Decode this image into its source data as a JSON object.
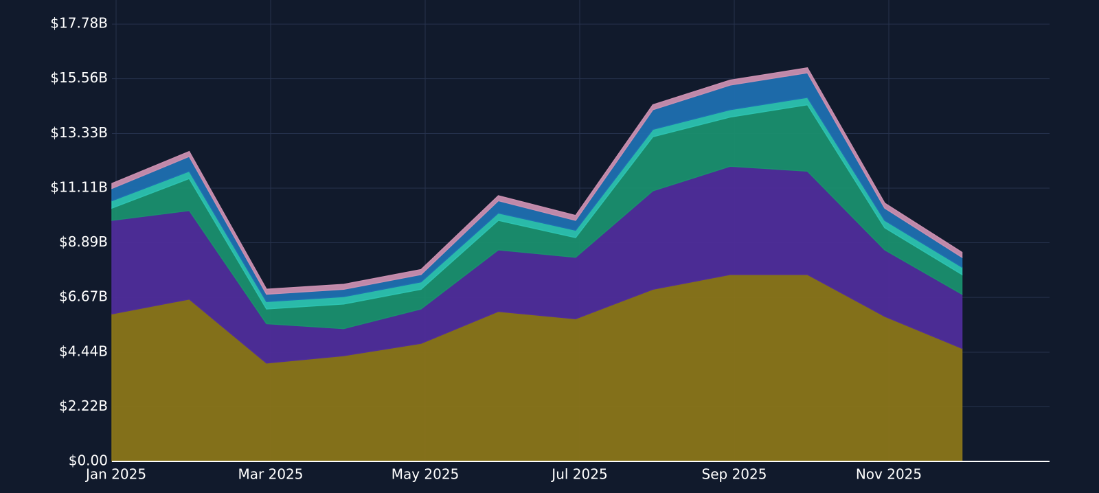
{
  "chart_data": {
    "type": "stacked_area",
    "x": [
      "Jan 2025",
      null,
      "Mar 2025",
      null,
      "May 2025",
      null,
      "Jul 2025",
      null,
      "Sep 2025",
      null,
      "Nov 2025",
      null
    ],
    "series": [
      {
        "color": "#8a7519",
        "values": [
          6.0,
          6.6,
          4.0,
          4.3,
          4.8,
          6.1,
          5.8,
          7.0,
          7.6,
          7.6,
          5.9,
          4.6
        ]
      },
      {
        "color": "#4f2d9a",
        "values": [
          3.8,
          3.6,
          1.6,
          1.1,
          1.4,
          2.5,
          2.5,
          4.0,
          4.4,
          4.2,
          2.7,
          2.2
        ]
      },
      {
        "color": "#1a8f6e",
        "values": [
          0.5,
          1.3,
          0.6,
          1.0,
          0.8,
          1.2,
          0.8,
          2.2,
          2.0,
          2.7,
          0.9,
          0.8
        ]
      },
      {
        "color": "#2cc3b0",
        "values": [
          0.3,
          0.3,
          0.3,
          0.3,
          0.3,
          0.3,
          0.3,
          0.3,
          0.3,
          0.3,
          0.3,
          0.3
        ]
      },
      {
        "color": "#1f6fb0",
        "values": [
          0.5,
          0.6,
          0.3,
          0.3,
          0.3,
          0.5,
          0.4,
          0.8,
          1.0,
          1.0,
          0.5,
          0.4
        ]
      },
      {
        "color": "#c98fb0",
        "values": [
          0.2,
          0.2,
          0.2,
          0.2,
          0.2,
          0.2,
          0.2,
          0.2,
          0.2,
          0.2,
          0.2,
          0.2
        ]
      }
    ],
    "ylim": [
      0,
      18.76
    ],
    "yticks": [
      {
        "value": 0,
        "label": "$0.00"
      },
      {
        "value": 2.22,
        "label": "$2.22B"
      },
      {
        "value": 4.44,
        "label": "$4.44B"
      },
      {
        "value": 6.67,
        "label": "$6.67B"
      },
      {
        "value": 8.89,
        "label": "$8.89B"
      },
      {
        "value": 11.11,
        "label": "$11.11B"
      },
      {
        "value": 13.33,
        "label": "$13.33B"
      },
      {
        "value": 15.56,
        "label": "$15.56B"
      },
      {
        "value": 17.78,
        "label": "$17.78B"
      }
    ],
    "grid": true
  }
}
